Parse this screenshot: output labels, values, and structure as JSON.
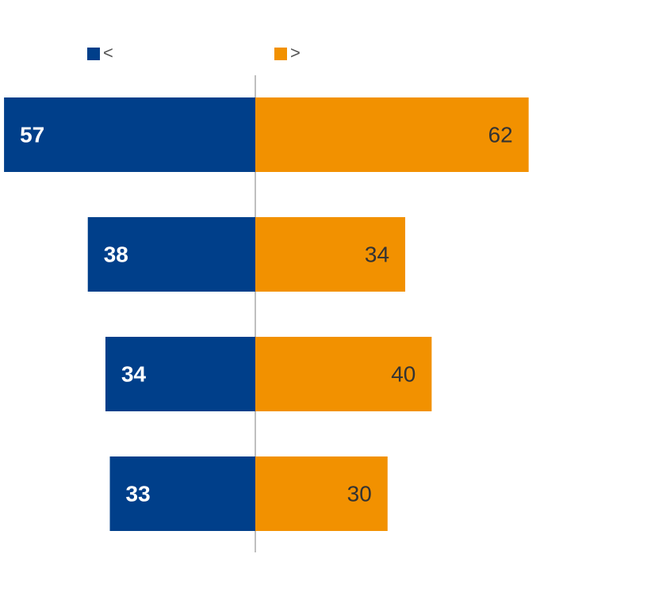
{
  "chart_data": {
    "type": "diverging_bar",
    "categories": [
      null,
      null,
      null,
      null
    ],
    "series": [
      {
        "name": "<",
        "color": "#003f8a",
        "values": [
          57,
          38,
          34,
          33
        ]
      },
      {
        "name": ">",
        "color": "#f29100",
        "values": [
          62,
          34,
          40,
          30
        ]
      }
    ]
  }
}
